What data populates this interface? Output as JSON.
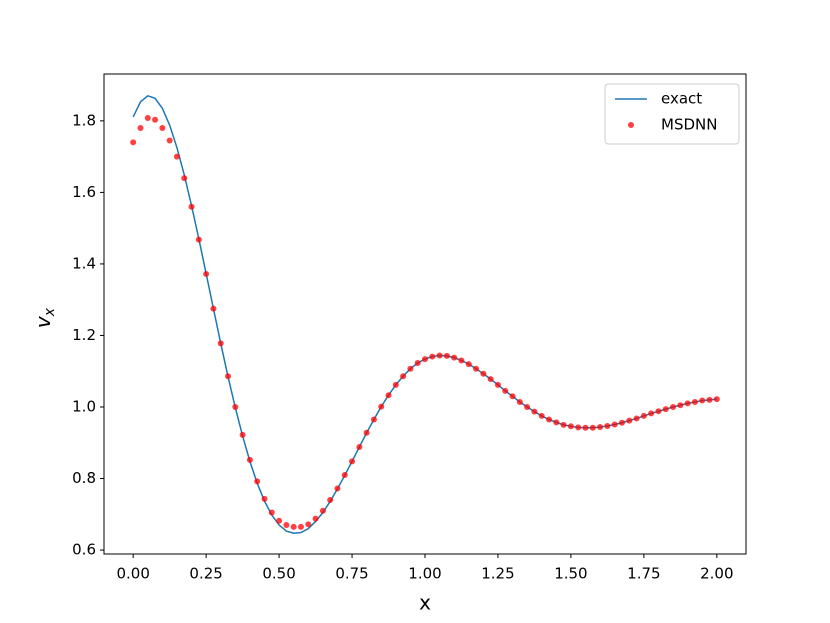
{
  "chart_data": {
    "type": "line",
    "xlabel": "x",
    "ylabel": "v",
    "ylabel_sub": "x",
    "x": [
      0,
      0.025,
      0.05,
      0.075,
      0.1,
      0.125,
      0.15,
      0.175,
      0.2,
      0.225,
      0.25,
      0.275,
      0.3,
      0.325,
      0.35,
      0.375,
      0.4,
      0.425,
      0.45,
      0.475,
      0.5,
      0.525,
      0.55,
      0.575,
      0.6,
      0.625,
      0.65,
      0.675,
      0.7,
      0.725,
      0.75,
      0.775,
      0.8,
      0.825,
      0.85,
      0.875,
      0.9,
      0.925,
      0.95,
      0.975,
      1,
      1.025,
      1.05,
      1.075,
      1.1,
      1.125,
      1.15,
      1.175,
      1.2,
      1.225,
      1.25,
      1.275,
      1.3,
      1.325,
      1.35,
      1.375,
      1.4,
      1.425,
      1.45,
      1.475,
      1.5,
      1.525,
      1.55,
      1.575,
      1.6,
      1.625,
      1.65,
      1.675,
      1.7,
      1.725,
      1.75,
      1.775,
      1.8,
      1.825,
      1.85,
      1.875,
      1.9,
      1.925,
      1.95,
      1.975,
      2
    ],
    "series": [
      {
        "name": "exact",
        "kind": "line",
        "color": "#1f77b4",
        "values": [
          1.811,
          1.853,
          1.87,
          1.863,
          1.835,
          1.788,
          1.725,
          1.649,
          1.563,
          1.47,
          1.373,
          1.275,
          1.178,
          1.085,
          0.998,
          0.919,
          0.848,
          0.787,
          0.737,
          0.698,
          0.67,
          0.653,
          0.647,
          0.649,
          0.66,
          0.68,
          0.705,
          0.736,
          0.771,
          0.809,
          0.848,
          0.888,
          0.928,
          0.965,
          1.001,
          1.033,
          1.062,
          1.086,
          1.107,
          1.123,
          1.134,
          1.141,
          1.144,
          1.143,
          1.138,
          1.13,
          1.12,
          1.107,
          1.093,
          1.078,
          1.062,
          1.045,
          1.03,
          1.014,
          1.0,
          0.987,
          0.975,
          0.965,
          0.957,
          0.95,
          0.946,
          0.943,
          0.942,
          0.942,
          0.944,
          0.947,
          0.951,
          0.956,
          0.962,
          0.968,
          0.975,
          0.982,
          0.988,
          0.994,
          1.0,
          1.005,
          1.01,
          1.014,
          1.018,
          1.02,
          1.022
        ]
      },
      {
        "name": "MSDNN",
        "kind": "scatter",
        "color": "#ff0000",
        "values": [
          1.74,
          1.78,
          1.808,
          1.803,
          1.78,
          1.745,
          1.7,
          1.64,
          1.56,
          1.468,
          1.372,
          1.275,
          1.178,
          1.086,
          1.0,
          0.922,
          0.852,
          0.792,
          0.743,
          0.705,
          0.682,
          0.67,
          0.665,
          0.665,
          0.672,
          0.688,
          0.71,
          0.74,
          0.772,
          0.81,
          0.848,
          0.888,
          0.928,
          0.965,
          1.001,
          1.033,
          1.062,
          1.086,
          1.107,
          1.123,
          1.134,
          1.141,
          1.144,
          1.143,
          1.138,
          1.13,
          1.12,
          1.107,
          1.093,
          1.078,
          1.062,
          1.045,
          1.03,
          1.014,
          1.0,
          0.987,
          0.975,
          0.965,
          0.957,
          0.95,
          0.946,
          0.943,
          0.942,
          0.942,
          0.944,
          0.947,
          0.951,
          0.956,
          0.962,
          0.968,
          0.975,
          0.982,
          0.988,
          0.994,
          1.0,
          1.005,
          1.01,
          1.014,
          1.018,
          1.02,
          1.022
        ]
      }
    ],
    "xlim": [
      -0.1,
      2.1
    ],
    "ylim": [
      0.589,
      1.931
    ],
    "xticks": [
      {
        "value": 0,
        "label": "0.00"
      },
      0.25,
      {
        "value": 0.5,
        "label": "0.50"
      },
      0.75,
      {
        "value": 1,
        "label": "1.00"
      },
      1.25,
      {
        "value": 1.5,
        "label": "1.50"
      },
      1.75,
      {
        "value": 2,
        "label": "2.00"
      }
    ],
    "yticks": [
      0.6,
      0.8,
      {
        "value": 1,
        "label": "1.0"
      },
      1.2,
      1.4,
      1.6,
      1.8
    ],
    "grid": false,
    "legend": "upper right"
  }
}
